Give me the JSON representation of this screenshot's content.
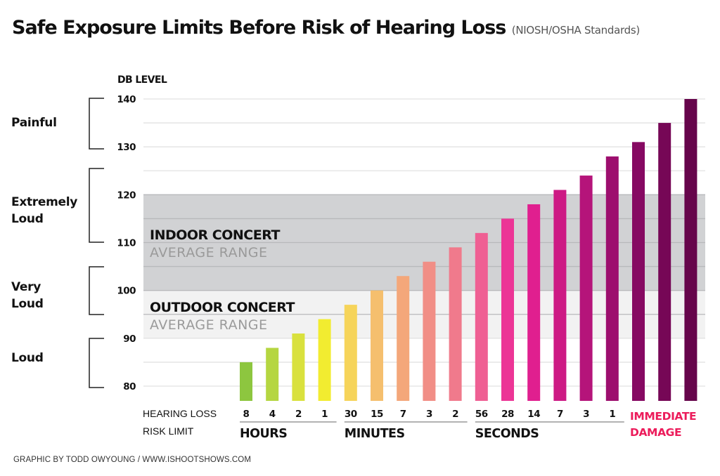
{
  "header": {
    "title": "Safe Exposure Limits Before Risk of Hearing Loss",
    "subtitle": "(NIOSH/OSHA Standards)"
  },
  "credit": "GRAPHIC BY TODD OWYOUNG / WWW.ISHOOTSHOWS.COM",
  "chart_data": {
    "type": "bar",
    "title": "Safe Exposure Limits Before Risk of Hearing Loss",
    "subtitle": "(NIOSH/OSHA Standards)",
    "ylabel": "DB LEVEL",
    "xlabel": "HEARING LOSS RISK LIMIT",
    "ylim": [
      77,
      140
    ],
    "yticks": [
      80,
      90,
      100,
      110,
      120,
      130,
      140
    ],
    "grid_step": 5,
    "grid": true,
    "categories": [
      "8 hours",
      "4 hours",
      "2 hours",
      "1 hour",
      "30 minutes",
      "15 minutes",
      "7 minutes",
      "3 minutes",
      "2 minutes",
      "56 seconds",
      "28 seconds",
      "14 seconds",
      "7 seconds",
      "3 seconds",
      "1 second",
      "Immediate damage",
      "Immediate damage",
      "Immediate damage"
    ],
    "exposure_labels": [
      "8",
      "4",
      "2",
      "1",
      "30",
      "15",
      "7",
      "3",
      "2",
      "56",
      "28",
      "14",
      "7",
      "3",
      "1",
      "",
      "",
      ""
    ],
    "values": [
      85,
      88,
      91,
      94,
      97,
      100,
      103,
      106,
      109,
      112,
      115,
      118,
      121,
      124,
      128,
      131,
      135,
      140
    ],
    "colors": [
      "#8dc63f",
      "#b5d641",
      "#d9e13d",
      "#f2ec30",
      "#f6d45a",
      "#f5bf6e",
      "#f4a77a",
      "#f18e86",
      "#f07a8c",
      "#ef5f93",
      "#ec3596",
      "#e01f8f",
      "#cd1a84",
      "#b5147a",
      "#9d0e6e",
      "#860962",
      "#760756",
      "#66054b"
    ],
    "groups": [
      {
        "label": "HOURS",
        "start": 0,
        "end": 3
      },
      {
        "label": "MINUTES",
        "start": 4,
        "end": 8
      },
      {
        "label": "SECONDS",
        "start": 9,
        "end": 14
      },
      {
        "label": "IMMEDIATE DAMAGE",
        "start": 15,
        "end": 17,
        "color": "#ec1c5b"
      }
    ],
    "row_labels": [
      "HEARING LOSS",
      "RISK LIMIT"
    ],
    "bands": [
      {
        "label": "INDOOR CONCERT",
        "sublabel": "AVERAGE RANGE",
        "from": 100,
        "to": 120,
        "color": "#d1d2d4"
      },
      {
        "label": "OUTDOOR CONCERT",
        "sublabel": "AVERAGE RANGE",
        "from": 90,
        "to": 100,
        "color": "#f2f2f2"
      }
    ],
    "loudness_categories": [
      {
        "label": "Painful",
        "from": 130,
        "to": 140
      },
      {
        "label": "Extremely Loud",
        "from": 110,
        "to": 125
      },
      {
        "label": "Very Loud",
        "from": 95,
        "to": 105
      },
      {
        "label": "Loud",
        "from": 80,
        "to": 90
      }
    ]
  }
}
